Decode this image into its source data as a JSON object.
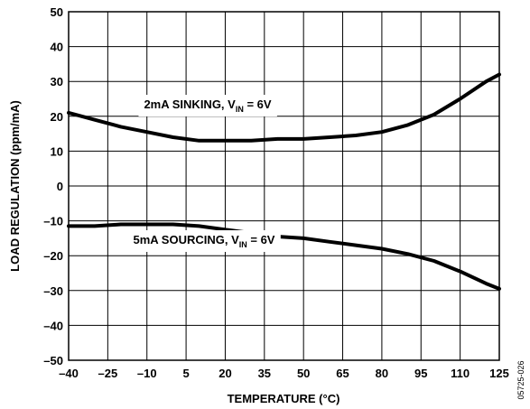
{
  "chart_data": {
    "type": "line",
    "xlabel": "TEMPERATURE (°C)",
    "ylabel": "LOAD REGULATION (ppm/mA)",
    "xlim": [
      -40,
      125
    ],
    "ylim": [
      -50,
      50
    ],
    "x_ticks": [
      -40,
      -25,
      -10,
      5,
      20,
      35,
      50,
      65,
      80,
      95,
      110,
      125
    ],
    "x_tick_labels": [
      "–40",
      "–25",
      "–10",
      "5",
      "20",
      "35",
      "50",
      "65",
      "80",
      "95",
      "110",
      "125"
    ],
    "y_ticks": [
      50,
      40,
      30,
      20,
      10,
      0,
      -10,
      -20,
      -30,
      -40,
      -50
    ],
    "y_tick_labels": [
      "50",
      "40",
      "30",
      "20",
      "10",
      "0",
      "–10",
      "–20",
      "–30",
      "–40",
      "–50"
    ],
    "grid": true,
    "series": [
      {
        "label_main": "2mA SINKING, V",
        "label_sub": "IN",
        "label_tail": " = 6V",
        "x": [
          -40,
          -30,
          -20,
          -10,
          0,
          10,
          20,
          30,
          40,
          50,
          60,
          70,
          80,
          90,
          100,
          110,
          120,
          125
        ],
        "values": [
          21,
          19,
          17,
          15.5,
          14,
          13,
          13,
          13,
          13.5,
          13.5,
          14,
          14.5,
          15.5,
          17.5,
          20.5,
          25,
          30,
          32
        ]
      },
      {
        "label_main": "5mA SOURCING, V",
        "label_sub": "IN",
        "label_tail": " = 6V",
        "x": [
          -40,
          -30,
          -20,
          -10,
          0,
          10,
          20,
          30,
          40,
          50,
          60,
          70,
          80,
          90,
          100,
          110,
          120,
          125
        ],
        "values": [
          -11.5,
          -11.5,
          -11,
          -11,
          -11,
          -11.5,
          -12.5,
          -13.5,
          -14.5,
          -15,
          -16,
          -17,
          -18,
          -19.5,
          -21.5,
          -24.5,
          -28,
          -29.5
        ]
      }
    ],
    "figure_id": "05725-026"
  }
}
